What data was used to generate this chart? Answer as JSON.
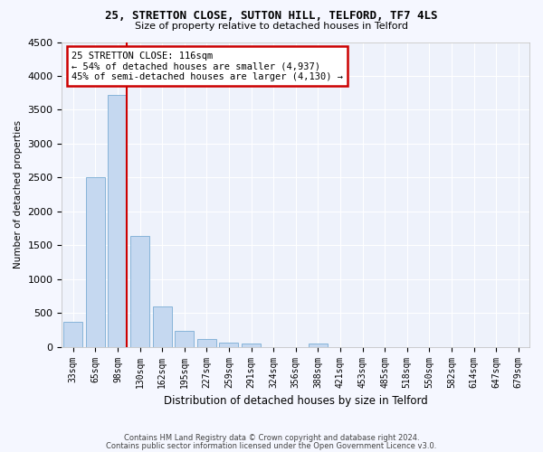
{
  "title": "25, STRETTON CLOSE, SUTTON HILL, TELFORD, TF7 4LS",
  "subtitle": "Size of property relative to detached houses in Telford",
  "xlabel": "Distribution of detached houses by size in Telford",
  "ylabel": "Number of detached properties",
  "categories": [
    "33sqm",
    "65sqm",
    "98sqm",
    "130sqm",
    "162sqm",
    "195sqm",
    "227sqm",
    "259sqm",
    "291sqm",
    "324sqm",
    "356sqm",
    "388sqm",
    "421sqm",
    "453sqm",
    "485sqm",
    "518sqm",
    "550sqm",
    "582sqm",
    "614sqm",
    "647sqm",
    "679sqm"
  ],
  "values": [
    370,
    2500,
    3720,
    1640,
    590,
    230,
    110,
    65,
    50,
    0,
    0,
    55,
    0,
    0,
    0,
    0,
    0,
    0,
    0,
    0,
    0
  ],
  "bar_color": "#c5d8f0",
  "bar_edge_color": "#7aadd4",
  "vline_color": "#cc0000",
  "vline_x_index": 2,
  "annotation_text": "25 STRETTON CLOSE: 116sqm\n← 54% of detached houses are smaller (4,937)\n45% of semi-detached houses are larger (4,130) →",
  "annotation_box_color": "#cc0000",
  "ylim": [
    0,
    4500
  ],
  "yticks": [
    0,
    500,
    1000,
    1500,
    2000,
    2500,
    3000,
    3500,
    4000,
    4500
  ],
  "bg_color": "#eef2fb",
  "grid_color": "#ffffff",
  "footer_line1": "Contains HM Land Registry data © Crown copyright and database right 2024.",
  "footer_line2": "Contains public sector information licensed under the Open Government Licence v3.0."
}
